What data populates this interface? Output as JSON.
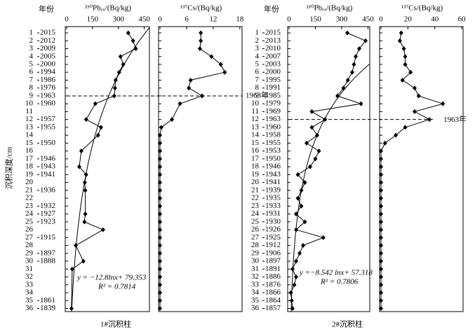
{
  "chart_data": {
    "type": "depth-profile",
    "y_axis_label": "沉积深度/cm",
    "ylim": [
      0.2,
      36.4
    ],
    "yticks": [
      1,
      2,
      3,
      4,
      5,
      6,
      7,
      8,
      9,
      10,
      11,
      12,
      13,
      14,
      15,
      16,
      17,
      18,
      19,
      20,
      21,
      22,
      23,
      24,
      25,
      26,
      27,
      28,
      29,
      30,
      31,
      32,
      33,
      34,
      35,
      36
    ],
    "cores": [
      {
        "title": "1#沉积柱",
        "year_header": "年份",
        "years": [
          "2015",
          "2012",
          "2009",
          "2005",
          "2000",
          "1994",
          "1986",
          "1976",
          "1963",
          "1960",
          null,
          "1957",
          "1955",
          null,
          "1950",
          null,
          "1946",
          "1943",
          "1941",
          null,
          "1936",
          null,
          "1932",
          "1927",
          "1923",
          null,
          "1915",
          null,
          "1897",
          "1888",
          null,
          null,
          null,
          null,
          "1861",
          "1839"
        ],
        "marker": {
          "depth": 9,
          "label": "1963年"
        },
        "pb": {
          "axis_label": "²¹⁰Pbₑₓ/(Bq/kg)",
          "xlim": [
            0,
            480
          ],
          "xticks": [
            0,
            150,
            300,
            450
          ],
          "depths": [
            1,
            2,
            3,
            4,
            5,
            6,
            7,
            8,
            9,
            10,
            12,
            13,
            14,
            16,
            18,
            19,
            20,
            21,
            24,
            25,
            26,
            28,
            30,
            31,
            36
          ],
          "values": [
            357,
            385,
            401,
            312,
            328,
            304,
            284,
            280,
            276,
            166,
            113,
            199,
            182,
            85,
            73,
            113,
            105,
            108,
            108,
            103,
            211,
            53,
            97,
            32,
            28
          ],
          "fit": {
            "a": -12.8,
            "b": 79.353
          },
          "equation": "y = −12.8lnx+ 79.353",
          "r2": "R² = 0.7814"
        },
        "cs": {
          "axis_label": "¹³⁷Cs/(Bq/kg)",
          "xlim": [
            0,
            18.5
          ],
          "xticks": [
            0,
            6,
            12,
            18
          ],
          "depths": [
            1,
            2,
            3,
            4,
            5,
            6,
            7,
            8,
            9,
            10,
            12,
            13,
            14,
            15,
            16,
            17,
            18,
            19,
            20,
            21,
            22,
            23,
            24,
            25,
            26,
            27,
            28,
            29,
            30,
            31,
            32,
            33,
            34,
            35,
            36
          ],
          "values": [
            9.2,
            9.2,
            9,
            11.6,
            13.7,
            14.6,
            6.9,
            6.5,
            9.5,
            4.5,
            2.7,
            0.3,
            0,
            0,
            0,
            0,
            0,
            0,
            0,
            0,
            0,
            0,
            0,
            0,
            0,
            0,
            0,
            0,
            0,
            0,
            0,
            0,
            0,
            0,
            0
          ]
        }
      },
      {
        "title": "2#沉积柱",
        "year_header": "年份",
        "years": [
          "2015",
          "2013",
          "2010",
          "2007",
          "2003",
          "2000",
          "1995",
          "1991",
          "1985",
          "1979",
          "1969",
          "1963",
          "1960",
          "1958",
          "1955",
          "1953",
          "1950",
          "1946",
          "1943",
          "1941",
          "1939",
          "1935",
          "1933",
          "1931",
          "1930",
          "1926",
          "1925",
          "1912",
          "1906",
          "1897",
          "1891",
          "1886",
          "1876",
          "1866",
          "1864",
          "1857"
        ],
        "marker": {
          "depth": 12,
          "label": "1963年"
        },
        "pb": {
          "axis_label": "²¹⁰Pbₑₓ/(Bq/kg)",
          "xlim": [
            0,
            460
          ],
          "xticks": [
            0,
            150,
            300,
            450
          ],
          "depths": [
            1,
            2,
            3,
            4,
            5,
            6,
            7,
            8,
            9,
            10,
            11,
            12,
            13,
            14,
            15,
            16,
            17,
            18,
            19,
            20,
            21,
            22,
            23,
            24,
            25,
            26,
            27,
            28,
            29,
            30,
            31,
            32,
            33,
            34,
            35,
            36
          ],
          "values": [
            332,
            436,
            400,
            380,
            370,
            360,
            335,
            310,
            276,
            410,
            130,
            205,
            130,
            160,
            100,
            170,
            150,
            120,
            50,
            90,
            70,
            50,
            70,
            40,
            90,
            40,
            195,
            80,
            60,
            40,
            20,
            40,
            30,
            10,
            15,
            20
          ],
          "fit": {
            "a": -8.542,
            "b": 57.318
          },
          "equation": "y =−8.542 lnx+ 57.318",
          "r2": "R² = 0.7806"
        },
        "cs": {
          "axis_label": "¹³⁷Cs/(Bq/kg)",
          "xlim": [
            0,
            61
          ],
          "xticks": [
            0,
            20,
            40,
            60
          ],
          "depths": [
            1,
            2,
            3,
            4,
            5,
            6,
            7,
            8,
            9,
            10,
            11,
            12,
            13,
            14,
            15,
            16,
            17,
            18,
            19,
            20,
            21,
            22,
            23,
            24,
            25,
            26,
            27,
            28,
            29,
            30,
            31,
            32,
            33,
            34,
            35,
            36
          ],
          "values": [
            15,
            14,
            17,
            18,
            18,
            22,
            16,
            25,
            28,
            46,
            25,
            36,
            18,
            11,
            3,
            0,
            0,
            0,
            0,
            0,
            0,
            0,
            0,
            0,
            0,
            0,
            0,
            0,
            0,
            0,
            0,
            0,
            0,
            0,
            0,
            0
          ]
        }
      }
    ]
  }
}
